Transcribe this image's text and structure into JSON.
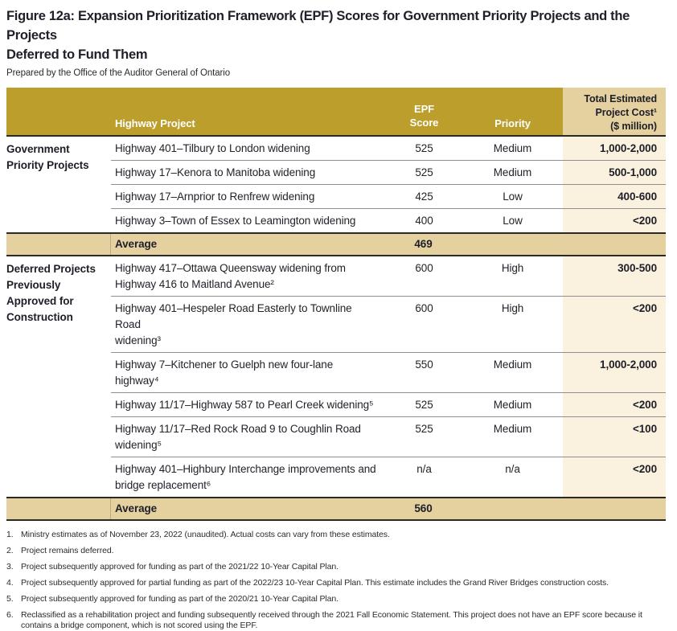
{
  "figure": {
    "title": "Figure 12a: Expansion Prioritization Framework (EPF) Scores for Government Priority Projects and the Projects\nDeferred to Fund Them",
    "subtitle": "Prepared by the Office of the Auditor General of Ontario"
  },
  "colors": {
    "header_gold": "#bc9e2c",
    "band_tan": "#e5d1a0",
    "cost_cream": "#faf1de",
    "border_dark": "#2b2a22",
    "row_line_gray": "#8f8f8f",
    "text_dark": "#1e1e28",
    "header_text_white": "#ffffff"
  },
  "table": {
    "columns": {
      "project": "Highway Project",
      "score": "EPF\nScore",
      "priority": "Priority",
      "cost": "Total Estimated\nProject Cost¹\n($ million)"
    },
    "sections": [
      {
        "label": "Government\nPriority Projects",
        "rows": [
          {
            "project": "Highway 401–Tilbury to London widening",
            "score": "525",
            "priority": "Medium",
            "cost": "1,000-2,000"
          },
          {
            "project": "Highway 17–Kenora to Manitoba widening",
            "score": "525",
            "priority": "Medium",
            "cost": "500-1,000"
          },
          {
            "project": "Highway 17–Arnprior to Renfrew widening",
            "score": "425",
            "priority": "Low",
            "cost": "400-600"
          },
          {
            "project": "Highway 3–Town of Essex to Leamington widening",
            "score": "400",
            "priority": "Low",
            "cost": "<200"
          }
        ],
        "average": {
          "label": "Average",
          "score": "469"
        }
      },
      {
        "label": "Deferred Projects\nPreviously\nApproved for\nConstruction",
        "rows": [
          {
            "project": "Highway 417–Ottawa Queensway widening from\nHighway 416 to Maitland Avenue²",
            "score": "600",
            "priority": "High",
            "cost": "300-500"
          },
          {
            "project": "Highway 401–Hespeler Road Easterly to Townline Road\nwidening³",
            "score": "600",
            "priority": "High",
            "cost": "<200"
          },
          {
            "project": "Highway 7–Kitchener to Guelph new four-lane highway⁴",
            "score": "550",
            "priority": "Medium",
            "cost": "1,000-2,000"
          },
          {
            "project": "Highway 11/17–Highway 587 to Pearl Creek widening⁵",
            "score": "525",
            "priority": "Medium",
            "cost": "<200"
          },
          {
            "project": "Highway 11/17–Red Rock Road 9 to Coughlin Road\nwidening⁵",
            "score": "525",
            "priority": "Medium",
            "cost": "<100"
          },
          {
            "project": "Highway 401–Highbury Interchange improvements and\nbridge replacement⁶",
            "score": "n/a",
            "priority": "n/a",
            "cost": "<200"
          }
        ],
        "average": {
          "label": "Average",
          "score": "560"
        }
      }
    ]
  },
  "footnotes": [
    {
      "num": "1.",
      "text": "Ministry estimates as of November 23, 2022 (unaudited). Actual costs can vary from these estimates."
    },
    {
      "num": "2.",
      "text": "Project remains deferred."
    },
    {
      "num": "3.",
      "text": "Project subsequently approved for funding as part of the 2021/22 10-Year Capital Plan."
    },
    {
      "num": "4.",
      "text": "Project subsequently approved for partial funding as part of the 2022/23 10-Year Capital Plan. This estimate includes the Grand River Bridges construction costs."
    },
    {
      "num": "5.",
      "text": "Project subsequently approved for funding as part of the 2020/21 10-Year Capital Plan."
    },
    {
      "num": "6.",
      "text": "Reclassified as a rehabilitation project and funding subsequently received through the 2021 Fall Economic Statement. This project does not have an EPF score because it contains a bridge component, which is not scored using the EPF."
    }
  ]
}
